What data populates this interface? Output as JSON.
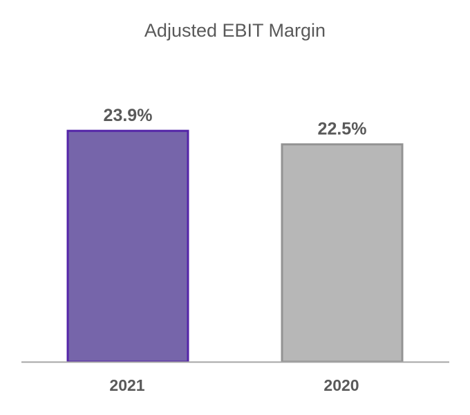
{
  "chart_data": {
    "type": "bar",
    "title": "Adjusted EBIT Margin",
    "xlabel": "",
    "ylabel": "",
    "categories": [
      "2021",
      "2020"
    ],
    "values": [
      23.9,
      22.5
    ],
    "value_labels": [
      "23.9%",
      "22.5%"
    ],
    "ylim": [
      0,
      25.2
    ],
    "grid": false,
    "legend": "none",
    "colors": {
      "fills": [
        "#7665AA",
        "#B7B7B7"
      ],
      "strokes": [
        "#5424A8",
        "#939393"
      ],
      "axis": "#A6A6A6",
      "text": "#595959"
    }
  }
}
